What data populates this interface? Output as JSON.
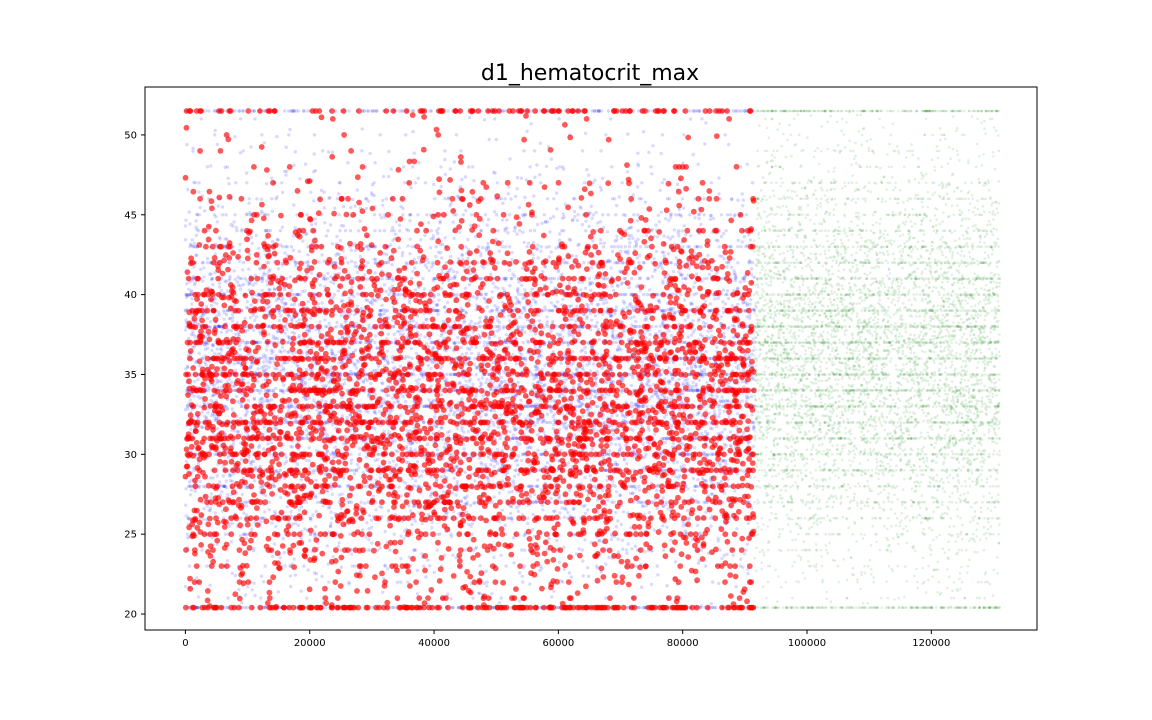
{
  "chart_data": {
    "type": "scatter",
    "title": "d1_hematocrit_max",
    "xlabel": "",
    "ylabel": "",
    "xlim": [
      -6500,
      137000
    ],
    "ylim": [
      19.0,
      53.0
    ],
    "x_ticks": [
      0,
      20000,
      40000,
      60000,
      80000,
      100000,
      120000
    ],
    "x_tick_labels": [
      "0",
      "20000",
      "40000",
      "60000",
      "80000",
      "100000",
      "120000"
    ],
    "y_ticks": [
      20,
      25,
      30,
      35,
      40,
      45,
      50
    ],
    "y_tick_labels": [
      "20",
      "25",
      "30",
      "35",
      "40",
      "45",
      "50"
    ],
    "clip_min": 20.4,
    "clip_max": 51.5,
    "grid": false,
    "legend": "none",
    "series": [
      {
        "color": "#0000ff",
        "opacity": 0.15,
        "marker_size": "small",
        "x_range": [
          0,
          91500
        ],
        "center": 35.0,
        "spread": 6.0,
        "point_count": 9000
      },
      {
        "color": "#ff0000",
        "opacity": 0.65,
        "marker_size": "large",
        "x_range": [
          0,
          91500
        ],
        "center": 33.0,
        "spread": 6.5,
        "point_count": 4200
      },
      {
        "color": "#008000",
        "opacity": 0.12,
        "marker_size": "tiny",
        "x_range": [
          91500,
          131000
        ],
        "center": 36.0,
        "spread": 6.5,
        "point_count": 7000
      }
    ]
  }
}
